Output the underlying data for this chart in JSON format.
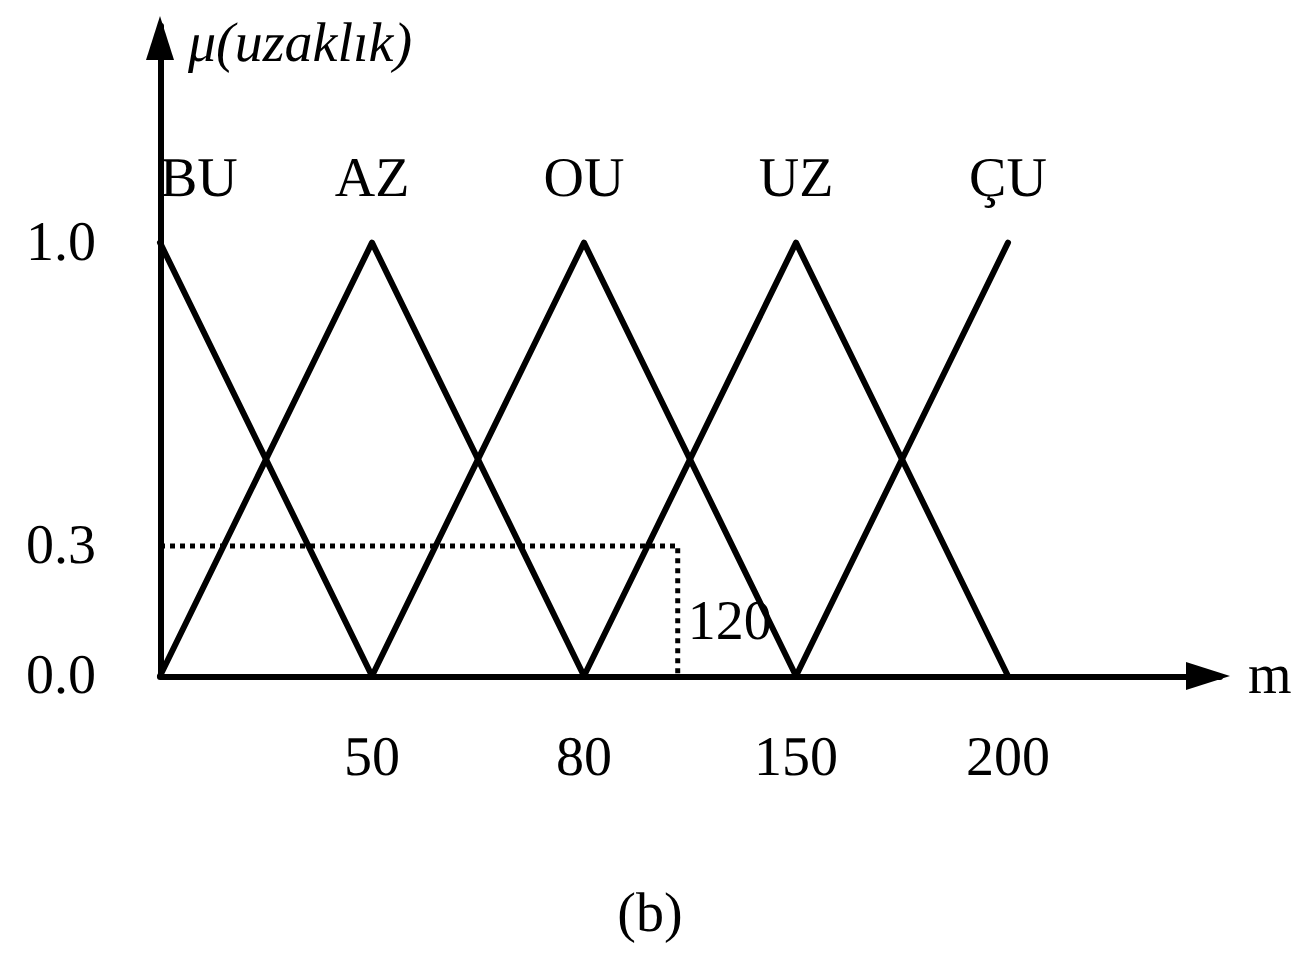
{
  "chart_data": {
    "type": "line",
    "xlabel": "m",
    "ylabel": "μ(uzaklık)",
    "categories": [
      null,
      "50",
      "80",
      "150",
      "200"
    ],
    "series": [
      {
        "name": "BU",
        "color": "#000000",
        "values": [
          1,
          0,
          null,
          null,
          null
        ]
      },
      {
        "name": "AZ",
        "color": "#000000",
        "values": [
          0,
          1,
          0,
          null,
          null
        ]
      },
      {
        "name": "OU",
        "color": "#000000",
        "values": [
          null,
          0,
          1,
          0,
          null
        ]
      },
      {
        "name": "UZ",
        "color": "#000000",
        "values": [
          null,
          null,
          0,
          1,
          0
        ]
      },
      {
        "name": "ÇU",
        "color": "#000000",
        "values": [
          null,
          null,
          null,
          0,
          1
        ]
      }
    ],
    "ylim": [
      0,
      1.5
    ],
    "yticks": [
      {
        "value": 0,
        "label": "0.0"
      },
      {
        "value": 0.3,
        "label": "0.3"
      },
      {
        "value": 1,
        "label": "1.0"
      }
    ],
    "annotations": [
      {
        "text": "120",
        "y": 0.3
      },
      "(b)"
    ]
  }
}
